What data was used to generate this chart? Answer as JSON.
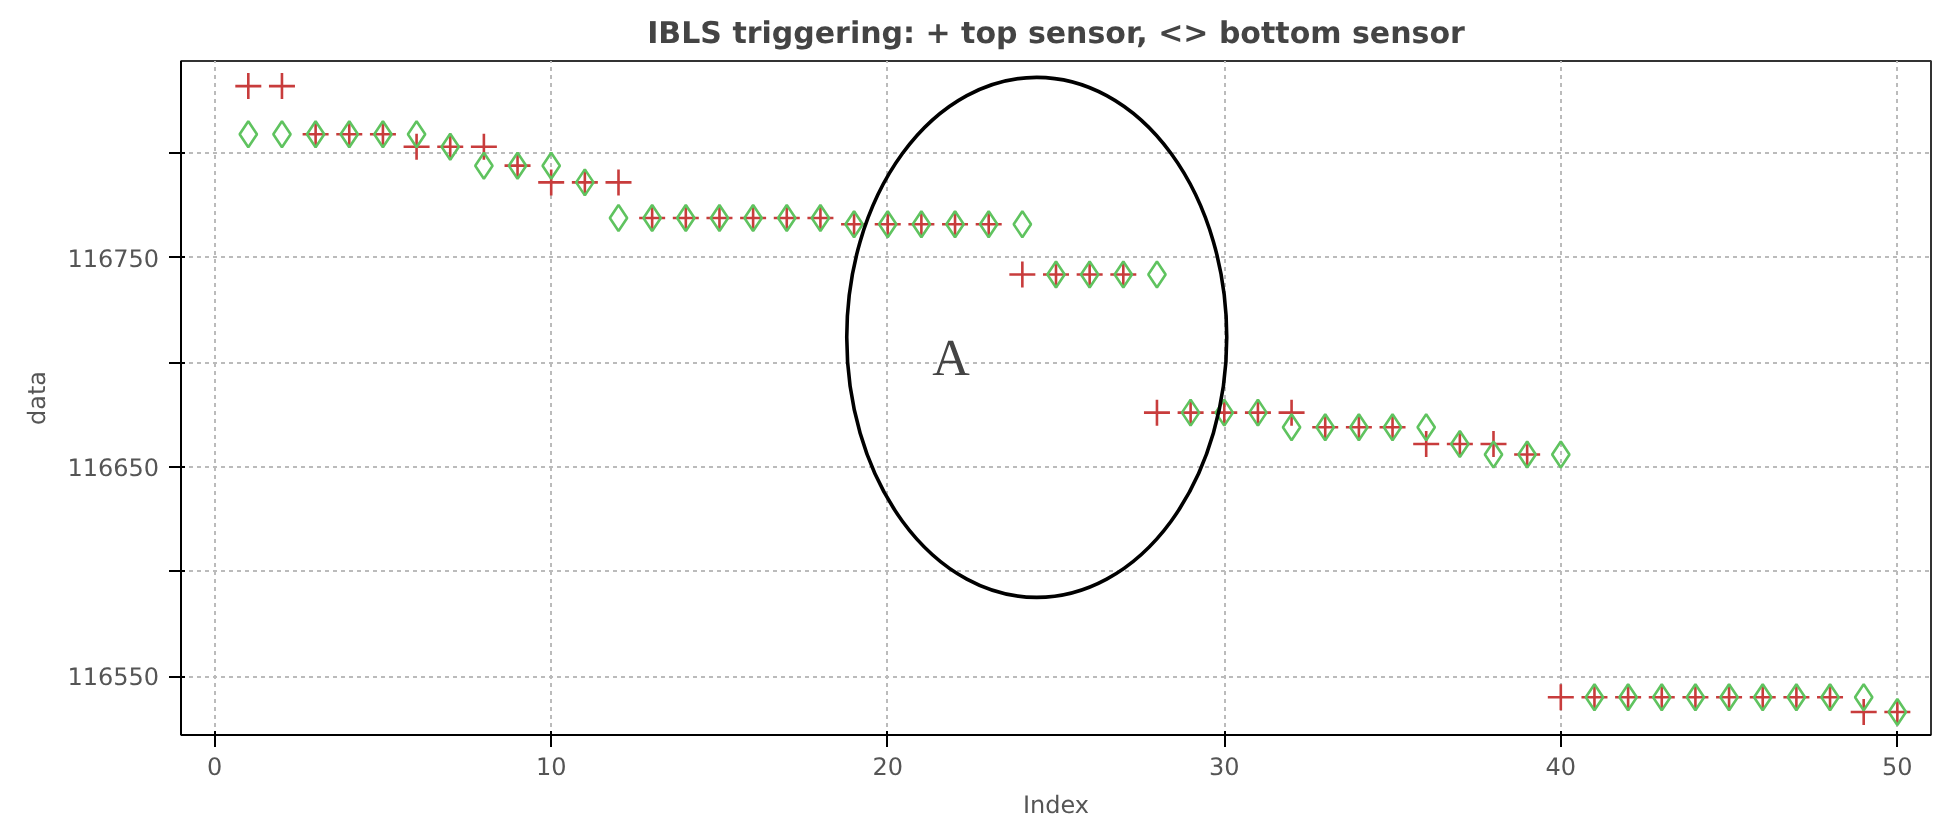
{
  "chart_data": {
    "type": "scatter",
    "title": "IBLS triggering: + top sensor, <> bottom sensor",
    "xlabel": "Index",
    "ylabel": "data",
    "x": [
      1,
      2,
      3,
      4,
      5,
      6,
      7,
      8,
      9,
      10,
      11,
      12,
      13,
      14,
      15,
      16,
      17,
      18,
      19,
      20,
      21,
      22,
      23,
      24,
      25,
      26,
      27,
      28,
      29,
      30,
      31,
      32,
      33,
      34,
      35,
      36,
      37,
      38,
      39,
      40,
      41,
      42,
      43,
      44,
      45,
      46,
      47,
      48,
      49,
      50
    ],
    "series": [
      {
        "color": "#c83c3c",
        "marker": "cross",
        "values": [
          116832,
          116832,
          116809,
          116809,
          116809,
          116803,
          116803,
          116803,
          116794,
          116786,
          116786,
          116786,
          116769,
          116769,
          116769,
          116769,
          116769,
          116769,
          116766,
          116766,
          116766,
          116766,
          116766,
          116742,
          116742,
          116742,
          116742,
          116676,
          116676,
          116676,
          116676,
          116676,
          116669,
          116669,
          116669,
          116661,
          116661,
          116661,
          116656,
          116540,
          116540,
          116540,
          116540,
          116540,
          116540,
          116540,
          116540,
          116540,
          116533,
          116533
        ]
      },
      {
        "color": "#5fc35f",
        "marker": "diamond",
        "values": [
          116809,
          116809,
          116809,
          116809,
          116809,
          116809,
          116803,
          116794,
          116794,
          116794,
          116786,
          116769,
          116769,
          116769,
          116769,
          116769,
          116769,
          116769,
          116766,
          116766,
          116766,
          116766,
          116766,
          116766,
          116742,
          116742,
          116742,
          116742,
          116676,
          116676,
          116676,
          116669,
          116669,
          116669,
          116669,
          116669,
          116661,
          116656,
          116656,
          116656,
          116540,
          116540,
          116540,
          116540,
          116540,
          116540,
          116540,
          116540,
          116540,
          116533
        ]
      }
    ],
    "xlim": [
      -1,
      51
    ],
    "ylim": [
      116522,
      116844
    ],
    "xticks": [
      0,
      10,
      20,
      30,
      40,
      50
    ],
    "yticks": [
      116550,
      {
        "value": 116600,
        "label": null
      },
      116650,
      {
        "value": 116700,
        "label": null
      },
      116750,
      {
        "value": 116800,
        "label": null
      }
    ],
    "grid": true,
    "annotations": [
      "A"
    ]
  }
}
